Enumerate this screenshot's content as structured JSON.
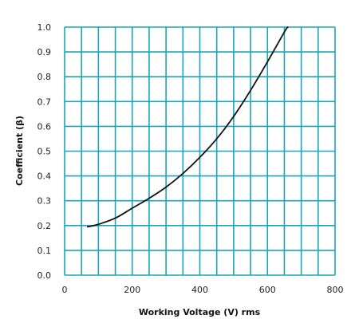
{
  "chart_data": {
    "type": "line",
    "title": "",
    "xlabel": "Working Voltage (V) rms",
    "ylabel": "Coefficient (β)",
    "xlim": [
      0,
      800
    ],
    "ylim": [
      0,
      1.0
    ],
    "x_ticks": [
      0,
      200,
      400,
      600,
      800
    ],
    "x_tick_labels": [
      "0",
      "200",
      "400",
      "600",
      "800"
    ],
    "y_ticks": [
      0.0,
      0.1,
      0.2,
      0.3,
      0.4,
      0.5,
      0.6,
      0.7,
      0.8,
      0.9,
      1.0
    ],
    "y_tick_labels": [
      "0.0",
      "0.1",
      "0.2",
      "0.3",
      "0.4",
      "0.5",
      "0.6",
      "0.7",
      "0.8",
      "0.9",
      "1.0"
    ],
    "x_gridlines_every": 50,
    "y_gridlines_every": 0.1,
    "grid": true,
    "legend": "none",
    "colors": {
      "grid": "#1aa6b7",
      "line": "#111111"
    },
    "series": [
      {
        "x": [
          68,
          100,
          150,
          200,
          250,
          300,
          350,
          400,
          450,
          500,
          550,
          600,
          650,
          660
        ],
        "values": [
          0.195,
          0.205,
          0.23,
          0.27,
          0.31,
          0.355,
          0.41,
          0.475,
          0.55,
          0.64,
          0.745,
          0.86,
          0.98,
          1.0
        ]
      }
    ]
  }
}
